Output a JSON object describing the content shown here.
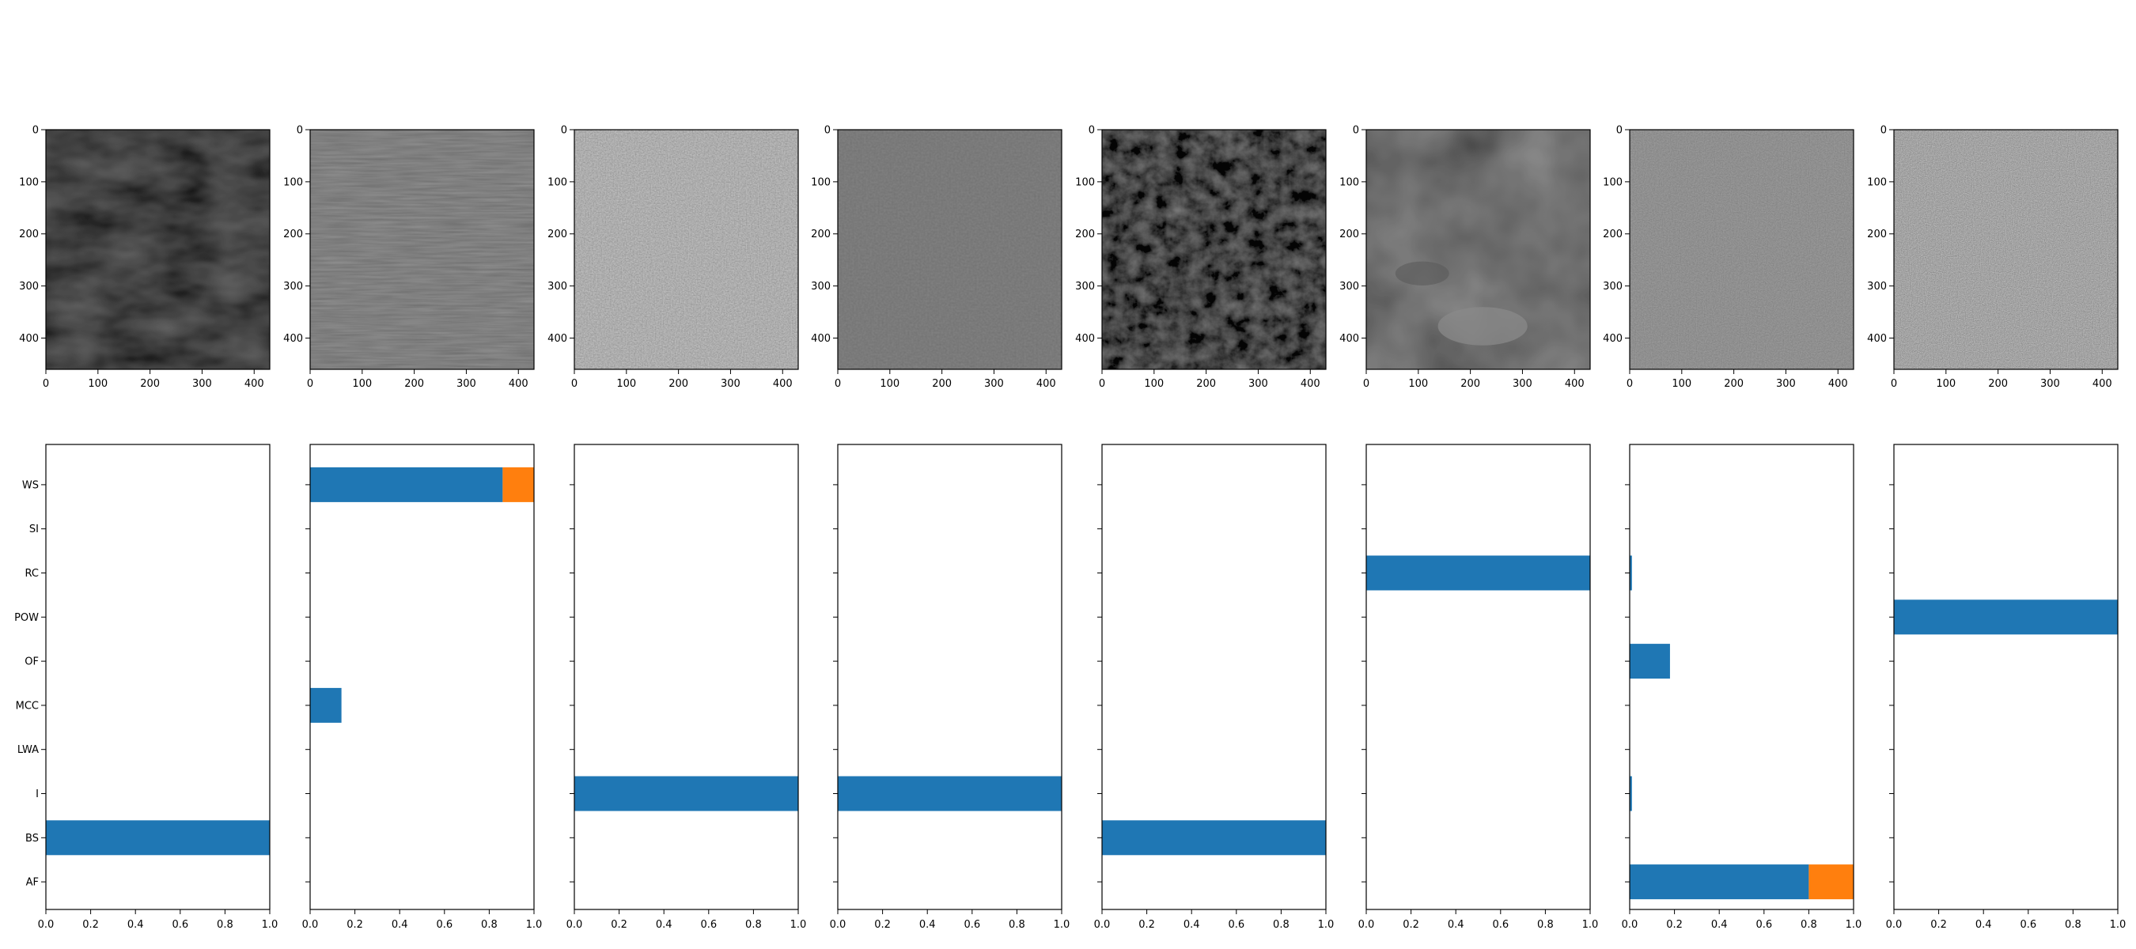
{
  "images": [
    {
      "shade": "#0b0b0b",
      "texture": "dark-wavy",
      "x_ticks": [
        "0",
        "100",
        "200",
        "300",
        "400"
      ],
      "y_ticks": [
        "0",
        "100",
        "200",
        "300",
        "400"
      ]
    },
    {
      "shade": "#404040",
      "texture": "fine-stripes",
      "x_ticks": [
        "0",
        "100",
        "200",
        "300",
        "400"
      ],
      "y_ticks": [
        "0",
        "100",
        "200",
        "300",
        "400"
      ]
    },
    {
      "shade": "#767676",
      "texture": "granular",
      "x_ticks": [
        "0",
        "100",
        "200",
        "300",
        "400"
      ],
      "y_ticks": [
        "0",
        "100",
        "200",
        "300",
        "400"
      ]
    },
    {
      "shade": "#3a3a3a",
      "texture": "smooth",
      "x_ticks": [
        "0",
        "100",
        "200",
        "300",
        "400"
      ],
      "y_ticks": [
        "0",
        "100",
        "200",
        "300",
        "400"
      ]
    },
    {
      "shade": "#1c1c1c",
      "texture": "cracked",
      "x_ticks": [
        "0",
        "100",
        "200",
        "300",
        "400"
      ],
      "y_ticks": [
        "0",
        "100",
        "200",
        "300",
        "400"
      ]
    },
    {
      "shade": "#303030",
      "texture": "clouds",
      "x_ticks": [
        "0",
        "100",
        "200",
        "300",
        "400"
      ],
      "y_ticks": [
        "0",
        "100",
        "200",
        "300",
        "400"
      ]
    },
    {
      "shade": "#4f4f4f",
      "texture": "noise",
      "x_ticks": [
        "0",
        "100",
        "200",
        "300",
        "400"
      ],
      "y_ticks": [
        "0",
        "100",
        "200",
        "300",
        "400"
      ]
    },
    {
      "shade": "#686868",
      "texture": "speckle",
      "x_ticks": [
        "0",
        "100",
        "200",
        "300",
        "400"
      ],
      "y_ticks": [
        "0",
        "100",
        "200",
        "300",
        "400"
      ]
    }
  ],
  "chart_data": {
    "type": "bar",
    "orientation": "horizontal",
    "stacked": true,
    "categories": [
      "AF",
      "BS",
      "I",
      "LWA",
      "MCC",
      "OF",
      "POW",
      "RC",
      "SI",
      "WS"
    ],
    "x_ticks": [
      "0.0",
      "0.2",
      "0.4",
      "0.6",
      "0.8",
      "1.0"
    ],
    "xlim": [
      0,
      1
    ],
    "colors": [
      "#1f77b4",
      "#ff7f0e"
    ],
    "panels": [
      {
        "series": [
          {
            "values": [
              0,
              1,
              0,
              0,
              0,
              0,
              0,
              0,
              0,
              0
            ]
          },
          {
            "values": [
              0,
              0,
              0,
              0,
              0,
              0,
              0,
              0,
              0,
              0
            ]
          }
        ]
      },
      {
        "series": [
          {
            "values": [
              0,
              0,
              0,
              0,
              0.14,
              0,
              0,
              0,
              0,
              0.86
            ]
          },
          {
            "values": [
              0,
              0,
              0,
              0,
              0,
              0,
              0,
              0,
              0,
              0.14
            ]
          }
        ]
      },
      {
        "series": [
          {
            "values": [
              0,
              0,
              1,
              0,
              0,
              0,
              0,
              0,
              0,
              0
            ]
          },
          {
            "values": [
              0,
              0,
              0,
              0,
              0,
              0,
              0,
              0,
              0,
              0
            ]
          }
        ]
      },
      {
        "series": [
          {
            "values": [
              0,
              0,
              1,
              0,
              0,
              0,
              0,
              0,
              0,
              0
            ]
          },
          {
            "values": [
              0,
              0,
              0,
              0,
              0,
              0,
              0,
              0,
              0,
              0
            ]
          }
        ]
      },
      {
        "series": [
          {
            "values": [
              0,
              1,
              0,
              0,
              0,
              0,
              0,
              0,
              0,
              0
            ]
          },
          {
            "values": [
              0,
              0,
              0,
              0,
              0,
              0,
              0,
              0,
              0,
              0
            ]
          }
        ]
      },
      {
        "series": [
          {
            "values": [
              0,
              0,
              0,
              0,
              0,
              0,
              0,
              1,
              0,
              0
            ]
          },
          {
            "values": [
              0,
              0,
              0,
              0,
              0,
              0,
              0,
              0,
              0,
              0
            ]
          }
        ]
      },
      {
        "series": [
          {
            "values": [
              0.8,
              0,
              0.01,
              0,
              0,
              0.18,
              0,
              0.01,
              0,
              0
            ]
          },
          {
            "values": [
              0.2,
              0,
              0,
              0,
              0,
              0,
              0,
              0,
              0,
              0
            ]
          }
        ]
      },
      {
        "series": [
          {
            "values": [
              0,
              0,
              0,
              0,
              0,
              0,
              1,
              0,
              0,
              0
            ]
          },
          {
            "values": [
              0,
              0,
              0,
              0,
              0,
              0,
              0,
              0,
              0,
              0
            ]
          }
        ]
      }
    ]
  }
}
